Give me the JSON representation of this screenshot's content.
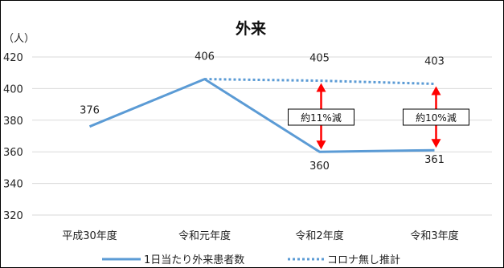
{
  "chart_data": {
    "type": "line",
    "title": "外来",
    "unit_label": "（人）",
    "categories": [
      "平成30年度",
      "令和元年度",
      "令和2年度",
      "令和3年度"
    ],
    "ylim": [
      320,
      420
    ],
    "yticks": [
      320,
      340,
      360,
      380,
      400,
      420
    ],
    "grid": true,
    "series": [
      {
        "name": "1日当たり外来患者数",
        "style": "solid",
        "color": "#5b9bd5",
        "values": [
          376,
          406,
          360,
          361
        ]
      },
      {
        "name": "コロナ無し推計",
        "style": "dotted",
        "color": "#5b9bd5",
        "values": [
          null,
          406,
          405,
          403
        ]
      }
    ],
    "data_labels": {
      "actual": [
        "376",
        "406",
        "360",
        "361"
      ],
      "estimate": [
        "",
        "",
        "405",
        "403"
      ]
    },
    "annotations": [
      {
        "category_index": 2,
        "text": "約11%減",
        "from": 405,
        "to": 360,
        "color": "#ff0000"
      },
      {
        "category_index": 3,
        "text": "約10%減",
        "from": 403,
        "to": 361,
        "color": "#ff0000"
      }
    ],
    "legend_position": "bottom"
  }
}
